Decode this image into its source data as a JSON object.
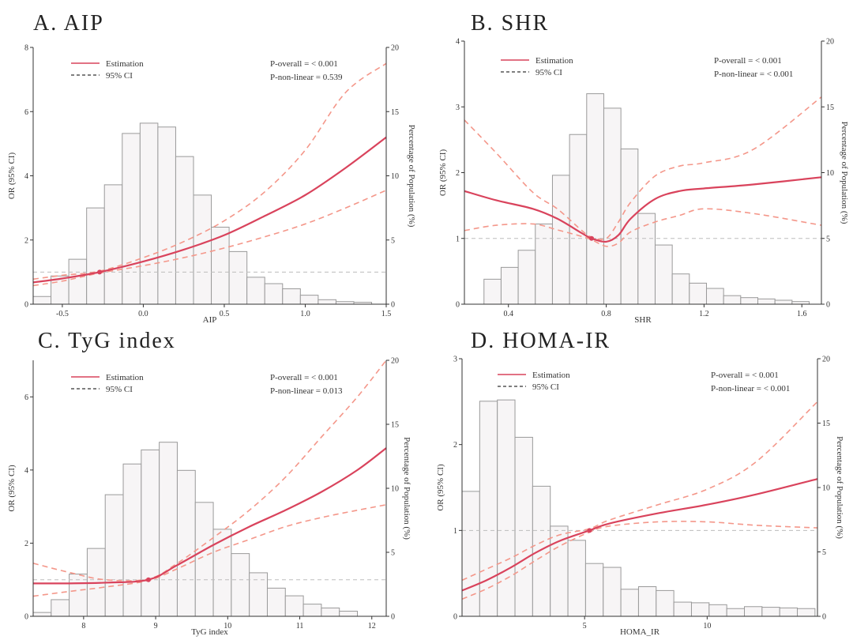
{
  "chart_data": [
    {
      "type": "line",
      "title": "A. AIP",
      "xlabel": "AIP",
      "ylabel": "OR (95% CI)",
      "y2label": "Percentage of Population (%)",
      "xlim": [
        -0.68,
        1.5
      ],
      "ylim": [
        0,
        8
      ],
      "y2lim": [
        0,
        20
      ],
      "xticks": [
        -0.5,
        0.0,
        0.5,
        1.0,
        1.5
      ],
      "xtick_labels": [
        "-0.5",
        "0.0",
        "0.5",
        "1.0",
        "1.5"
      ],
      "yticks": [
        0,
        2,
        4,
        6,
        8
      ],
      "y2ticks": [
        0,
        5,
        10,
        15,
        20
      ],
      "reference_line": 1,
      "reference_point": [
        -0.27,
        1
      ],
      "legend": {
        "estimation": "Estimation",
        "ci": "95% CI",
        "position": "top-left"
      },
      "p_overall": "P-overall = < 0.001",
      "p_nonlinear": "P-non-linear = 0.539",
      "histogram": {
        "edges": [
          -0.68,
          -0.57,
          -0.46,
          -0.35,
          -0.24,
          -0.13,
          -0.02,
          0.09,
          0.2,
          0.31,
          0.42,
          0.53,
          0.64,
          0.75,
          0.86,
          0.97,
          1.08,
          1.19,
          1.3,
          1.41
        ],
        "percent": [
          0.6,
          2.2,
          3.5,
          7.5,
          9.3,
          13.3,
          14.1,
          13.8,
          11.5,
          8.5,
          6.0,
          4.1,
          2.1,
          1.6,
          1.2,
          0.7,
          0.35,
          0.2,
          0.15
        ]
      },
      "series": [
        {
          "name": "Estimation",
          "x": [
            -0.68,
            -0.5,
            -0.27,
            0.0,
            0.25,
            0.5,
            0.75,
            1.0,
            1.25,
            1.5
          ],
          "y": [
            0.68,
            0.8,
            1.0,
            1.33,
            1.7,
            2.15,
            2.75,
            3.4,
            4.25,
            5.2
          ]
        },
        {
          "name": "95% CI upper",
          "x": [
            -0.68,
            -0.5,
            -0.27,
            0.0,
            0.25,
            0.5,
            0.75,
            1.0,
            1.25,
            1.5
          ],
          "y": [
            0.78,
            0.9,
            1.03,
            1.45,
            1.95,
            2.6,
            3.5,
            4.8,
            6.6,
            7.5
          ]
        },
        {
          "name": "95% CI lower",
          "x": [
            -0.68,
            -0.5,
            -0.27,
            0.0,
            0.25,
            0.5,
            0.75,
            1.0,
            1.25,
            1.5
          ],
          "y": [
            0.58,
            0.72,
            0.97,
            1.2,
            1.45,
            1.75,
            2.1,
            2.5,
            3.0,
            3.55
          ]
        }
      ]
    },
    {
      "type": "line",
      "title": "B. SHR",
      "xlabel": "SHR",
      "ylabel": "OR (95% CI)",
      "y2label": "Percentage of Population (%)",
      "xlim": [
        0.22,
        1.68
      ],
      "ylim": [
        0,
        4
      ],
      "y2lim": [
        0,
        20
      ],
      "xticks": [
        0.4,
        0.8,
        1.2,
        1.6
      ],
      "xtick_labels": [
        "0.4",
        "0.8",
        "1.2",
        "1.6"
      ],
      "yticks": [
        0,
        1,
        2,
        3,
        4
      ],
      "y2ticks": [
        0,
        5,
        10,
        15,
        20
      ],
      "reference_line": 1,
      "reference_point": [
        0.74,
        1
      ],
      "legend": {
        "estimation": "Estimation",
        "ci": "95% CI",
        "position": "top-left"
      },
      "p_overall": "P-overall = < 0.001",
      "p_nonlinear": "P-non-linear = < 0.001",
      "histogram": {
        "edges": [
          0.3,
          0.37,
          0.44,
          0.51,
          0.58,
          0.65,
          0.72,
          0.79,
          0.86,
          0.93,
          1.0,
          1.07,
          1.14,
          1.21,
          1.28,
          1.35,
          1.42,
          1.49,
          1.56,
          1.63
        ],
        "percent": [
          1.9,
          2.8,
          4.1,
          6.1,
          9.8,
          12.9,
          16.0,
          14.9,
          11.8,
          6.9,
          4.5,
          2.3,
          1.6,
          1.2,
          0.65,
          0.5,
          0.4,
          0.3,
          0.2
        ]
      },
      "series": [
        {
          "name": "Estimation",
          "x": [
            0.22,
            0.35,
            0.5,
            0.6,
            0.7,
            0.74,
            0.8,
            0.85,
            0.9,
            1.0,
            1.1,
            1.2,
            1.4,
            1.68
          ],
          "y": [
            1.72,
            1.58,
            1.45,
            1.3,
            1.08,
            1.0,
            0.95,
            1.05,
            1.3,
            1.6,
            1.72,
            1.76,
            1.82,
            1.93
          ]
        },
        {
          "name": "95% CI upper",
          "x": [
            0.22,
            0.35,
            0.5,
            0.6,
            0.7,
            0.74,
            0.8,
            0.85,
            0.9,
            1.0,
            1.1,
            1.2,
            1.4,
            1.68
          ],
          "y": [
            2.8,
            2.3,
            1.7,
            1.45,
            1.12,
            1.02,
            1.0,
            1.25,
            1.55,
            1.95,
            2.1,
            2.15,
            2.35,
            3.15
          ]
        },
        {
          "name": "95% CI lower",
          "x": [
            0.22,
            0.35,
            0.5,
            0.6,
            0.7,
            0.74,
            0.8,
            0.85,
            0.9,
            1.0,
            1.1,
            1.2,
            1.4,
            1.68
          ],
          "y": [
            1.12,
            1.2,
            1.22,
            1.13,
            1.03,
            0.98,
            0.88,
            0.93,
            1.1,
            1.25,
            1.35,
            1.45,
            1.38,
            1.2
          ]
        }
      ]
    },
    {
      "type": "line",
      "title": "C. TyG index",
      "xlabel": "TyG  index",
      "ylabel": "OR (95% CI)",
      "y2label": "Percentage of Population (%)",
      "xlim": [
        7.3,
        12.2
      ],
      "ylim": [
        0,
        7
      ],
      "y2lim": [
        0,
        20
      ],
      "xticks": [
        8,
        9,
        10,
        11,
        12
      ],
      "xtick_labels": [
        "8",
        "9",
        "10",
        "11",
        "12"
      ],
      "yticks": [
        0,
        2,
        4,
        6
      ],
      "y2ticks": [
        0,
        5,
        10,
        15,
        20
      ],
      "reference_line": 1,
      "reference_point": [
        8.9,
        1
      ],
      "legend": {
        "estimation": "Estimation",
        "ci": "95% CI",
        "position": "top-left"
      },
      "p_overall": "P-overall = < 0.001",
      "p_nonlinear": "P-non-linear = 0.013",
      "histogram": {
        "edges": [
          7.3,
          7.55,
          7.8,
          8.05,
          8.3,
          8.55,
          8.8,
          9.05,
          9.3,
          9.55,
          9.8,
          10.05,
          10.3,
          10.55,
          10.8,
          11.05,
          11.3,
          11.55,
          11.8
        ],
        "percent": [
          0.3,
          1.3,
          3.3,
          5.3,
          9.5,
          11.9,
          13.0,
          13.6,
          11.4,
          8.9,
          6.8,
          4.9,
          3.4,
          2.2,
          1.6,
          0.95,
          0.65,
          0.4
        ]
      },
      "series": [
        {
          "name": "Estimation",
          "x": [
            7.3,
            7.8,
            8.3,
            8.9,
            9.3,
            9.8,
            10.3,
            10.8,
            11.3,
            11.8,
            12.2
          ],
          "y": [
            0.9,
            0.9,
            0.92,
            1.0,
            1.4,
            1.95,
            2.45,
            2.9,
            3.4,
            4.0,
            4.6
          ]
        },
        {
          "name": "95% CI upper",
          "x": [
            7.3,
            7.8,
            8.3,
            8.9,
            9.3,
            9.8,
            10.3,
            10.8,
            11.3,
            11.8,
            12.2
          ],
          "y": [
            1.45,
            1.2,
            1.0,
            1.02,
            1.45,
            2.15,
            2.9,
            3.8,
            4.9,
            6.0,
            7.0
          ]
        },
        {
          "name": "95% CI lower",
          "x": [
            7.3,
            7.8,
            8.3,
            8.9,
            9.3,
            9.8,
            10.3,
            10.8,
            11.3,
            11.8,
            12.2
          ],
          "y": [
            0.55,
            0.68,
            0.8,
            0.98,
            1.3,
            1.75,
            2.1,
            2.45,
            2.7,
            2.9,
            3.05
          ]
        }
      ]
    },
    {
      "type": "line",
      "title": "D. HOMA-IR",
      "xlabel": "HOMA_IR",
      "ylabel": "OR (95% CI)",
      "y2label": "Percentage of Population (%)",
      "xlim": [
        0,
        14.5
      ],
      "ylim": [
        0,
        3
      ],
      "y2lim": [
        0,
        20
      ],
      "xticks": [
        5,
        10
      ],
      "xtick_labels": [
        "5",
        "10"
      ],
      "yticks": [
        0,
        1,
        2,
        3
      ],
      "y2ticks": [
        0,
        5,
        10,
        15,
        20
      ],
      "reference_line": 1,
      "reference_point": [
        5.2,
        1
      ],
      "legend": {
        "estimation": "Estimation",
        "ci": "95% CI",
        "position": "top-left"
      },
      "p_overall": "P-overall = < 0.001",
      "p_nonlinear": "P-non-linear = < 0.001",
      "histogram": {
        "edges": [
          0,
          0.72,
          1.44,
          2.16,
          2.88,
          3.6,
          4.32,
          5.04,
          5.76,
          6.48,
          7.2,
          7.92,
          8.64,
          9.36,
          10.08,
          10.8,
          11.52,
          12.24,
          12.96,
          13.68,
          14.4
        ],
        "percent": [
          9.7,
          16.7,
          16.8,
          13.9,
          10.1,
          7.0,
          5.9,
          4.1,
          3.8,
          2.1,
          2.3,
          2.0,
          1.1,
          1.05,
          0.9,
          0.6,
          0.75,
          0.7,
          0.65,
          0.6
        ]
      },
      "series": [
        {
          "name": "Estimation",
          "x": [
            0,
            1,
            2,
            3,
            4,
            5.2,
            6,
            8,
            10,
            12,
            14.5
          ],
          "y": [
            0.3,
            0.42,
            0.57,
            0.74,
            0.88,
            1.0,
            1.08,
            1.2,
            1.3,
            1.42,
            1.6
          ]
        },
        {
          "name": "95% CI upper",
          "x": [
            0,
            1,
            2,
            3,
            4,
            5.2,
            6,
            8,
            10,
            12,
            14.5
          ],
          "y": [
            0.42,
            0.55,
            0.68,
            0.83,
            0.95,
            1.02,
            1.12,
            1.3,
            1.48,
            1.8,
            2.5
          ]
        },
        {
          "name": "95% CI lower",
          "x": [
            0,
            1,
            2,
            3,
            4,
            5.2,
            6,
            8,
            10,
            12,
            14.5
          ],
          "y": [
            0.2,
            0.32,
            0.47,
            0.65,
            0.82,
            0.98,
            1.05,
            1.1,
            1.1,
            1.06,
            1.03
          ]
        }
      ]
    }
  ],
  "colors": {
    "estimation": "#d9435c",
    "ci": "#f4978a",
    "bar_fill": "#f7f5f6",
    "bar_stroke": "#9a9a9a",
    "reference": "#bdbdbd",
    "axis": "#333333"
  }
}
